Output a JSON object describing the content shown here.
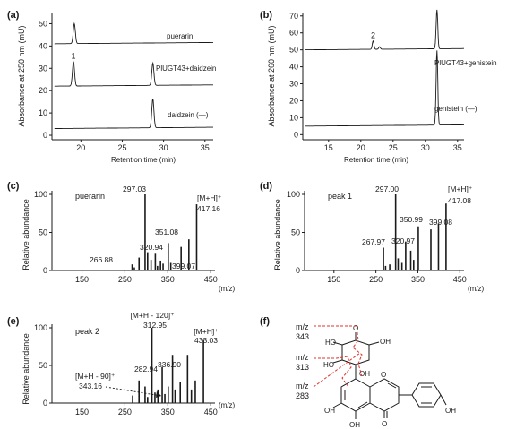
{
  "chart_data": [
    {
      "panel": "(a)",
      "type": "line",
      "ylabel": "Absorbance at 250 nm (mU)",
      "xlabel": "Retention time (min)",
      "yticks": [
        "0",
        "10",
        "20",
        "30",
        "40",
        "50"
      ],
      "xticks": [
        "20",
        "25",
        "30",
        "35"
      ],
      "xlim": [
        16.5,
        36
      ],
      "ylim": [
        -2,
        55
      ],
      "traces": [
        {
          "name": "puerarin",
          "baseline": 41,
          "peaks": [
            {
              "x": 19.2,
              "h": 9,
              "label": ""
            }
          ]
        },
        {
          "name": "PlUGT43+daidzein",
          "baseline": 22,
          "peaks": [
            {
              "x": 19.1,
              "h": 11,
              "label": "1"
            },
            {
              "x": 28.7,
              "h": 10,
              "label": ""
            }
          ]
        },
        {
          "name": "daidzein  (—)",
          "baseline": 3,
          "peaks": [
            {
              "x": 28.7,
              "h": 13,
              "label": ""
            }
          ]
        }
      ]
    },
    {
      "panel": "(b)",
      "type": "line",
      "ylabel": "Absorbance at 260 nm (mU)",
      "xlabel": "Retention time (min)",
      "yticks": [
        "0",
        "10",
        "20",
        "30",
        "40",
        "50",
        "60",
        "70"
      ],
      "xticks": [
        "15",
        "20",
        "25",
        "30",
        "35"
      ],
      "xlim": [
        11,
        36
      ],
      "ylim": [
        -3,
        72
      ],
      "traces": [
        {
          "name": "PlUGT43+genistein",
          "baseline": 50,
          "peaks": [
            {
              "x": 21.9,
              "h": 5,
              "label": "2"
            },
            {
              "x": 22.9,
              "h": 1.5,
              "label": ""
            },
            {
              "x": 31.8,
              "h": 23,
              "label": ""
            }
          ]
        },
        {
          "name": "genistein  (—)",
          "baseline": 5,
          "peaks": [
            {
              "x": 31.8,
              "h": 44,
              "label": ""
            }
          ]
        }
      ]
    },
    {
      "panel": "(c)",
      "type": "bar",
      "name": "puerarin",
      "ylabel": "Relative abundance",
      "yticks": [
        "0",
        "50",
        "100"
      ],
      "xticks": [
        "150",
        "250",
        "350",
        "450"
      ],
      "xunit": "(m/z)",
      "xlim": [
        80,
        460
      ],
      "ylim": [
        0,
        100
      ],
      "peaks": [
        {
          "x": 266.88,
          "y": 8
        },
        {
          "x": 272,
          "y": 4
        },
        {
          "x": 283,
          "y": 17
        },
        {
          "x": 297.03,
          "y": 100
        },
        {
          "x": 303,
          "y": 24
        },
        {
          "x": 311,
          "y": 14
        },
        {
          "x": 320.94,
          "y": 22
        },
        {
          "x": 326,
          "y": 6
        },
        {
          "x": 333,
          "y": 13
        },
        {
          "x": 339,
          "y": 9
        },
        {
          "x": 351.08,
          "y": 36
        },
        {
          "x": 357,
          "y": 10
        },
        {
          "x": 381,
          "y": 31
        },
        {
          "x": 399.07,
          "y": 41
        },
        {
          "x": 417.16,
          "y": 87
        }
      ],
      "annotations": [
        {
          "text": "297.03",
          "x": 297.03
        },
        {
          "text": "351.08",
          "x": 351.08
        },
        {
          "text": "320.94",
          "x": 320.94
        },
        {
          "text": "399.07",
          "x": 399.07
        },
        {
          "text": "266.88",
          "x": 266.88
        },
        {
          "text": "[M+H]⁺",
          "x": 417.16
        },
        {
          "text": "417.16",
          "x": 417.16
        }
      ]
    },
    {
      "panel": "(d)",
      "type": "bar",
      "name": "peak 1",
      "ylabel": "Relative abundance",
      "yticks": [
        "0",
        "50",
        "100"
      ],
      "xticks": [
        "150",
        "250",
        "350",
        "450"
      ],
      "xunit": "(m/z)",
      "xlim": [
        80,
        460
      ],
      "ylim": [
        0,
        100
      ],
      "peaks": [
        {
          "x": 267.97,
          "y": 30
        },
        {
          "x": 273,
          "y": 6
        },
        {
          "x": 283,
          "y": 8
        },
        {
          "x": 297.0,
          "y": 100
        },
        {
          "x": 303,
          "y": 16
        },
        {
          "x": 312,
          "y": 10
        },
        {
          "x": 320.97,
          "y": 38
        },
        {
          "x": 333,
          "y": 26
        },
        {
          "x": 340,
          "y": 14
        },
        {
          "x": 350.99,
          "y": 58
        },
        {
          "x": 381,
          "y": 54
        },
        {
          "x": 399.08,
          "y": 62
        },
        {
          "x": 417.08,
          "y": 88
        }
      ],
      "annotations": [
        {
          "text": "297.00",
          "x": 297.0
        },
        {
          "text": "350.99",
          "x": 350.99
        },
        {
          "text": "399.08",
          "x": 399.08
        },
        {
          "text": "320.97",
          "x": 320.97
        },
        {
          "text": "267.97",
          "x": 267.97
        },
        {
          "text": "[M+H]⁺",
          "x": 417.08
        },
        {
          "text": "417.08",
          "x": 417.08
        }
      ]
    },
    {
      "panel": "(e)",
      "type": "bar",
      "name": "peak 2",
      "ylabel": "Relative abundance",
      "yticks": [
        "0",
        "50",
        "100"
      ],
      "xticks": [
        "150",
        "250",
        "350",
        "450"
      ],
      "xunit": "(m/z)",
      "xlim": [
        80,
        460
      ],
      "ylim": [
        0,
        100
      ],
      "peaks": [
        {
          "x": 268,
          "y": 10
        },
        {
          "x": 282.94,
          "y": 30
        },
        {
          "x": 297,
          "y": 22
        },
        {
          "x": 303,
          "y": 8
        },
        {
          "x": 312.95,
          "y": 100
        },
        {
          "x": 320,
          "y": 14
        },
        {
          "x": 327,
          "y": 18
        },
        {
          "x": 336.9,
          "y": 48
        },
        {
          "x": 343.16,
          "y": 12
        },
        {
          "x": 351,
          "y": 22
        },
        {
          "x": 361,
          "y": 64
        },
        {
          "x": 367,
          "y": 18
        },
        {
          "x": 379,
          "y": 28
        },
        {
          "x": 396,
          "y": 64
        },
        {
          "x": 405,
          "y": 18
        },
        {
          "x": 414,
          "y": 30
        },
        {
          "x": 433.03,
          "y": 84
        }
      ],
      "annotations": [
        {
          "text": "[M+H - 120]⁺",
          "x": 312.95
        },
        {
          "text": "312.95",
          "x": 312.95
        },
        {
          "text": "[M+H]⁺",
          "x": 433.03
        },
        {
          "text": "433.03",
          "x": 433.03
        },
        {
          "text": "336.90",
          "x": 336.9
        },
        {
          "text": "282.94",
          "x": 282.94
        },
        {
          "text": "[M+H - 90]⁺",
          "x": 343.16
        },
        {
          "text": "343.16",
          "x": 343.16
        }
      ]
    }
  ],
  "panel_f": {
    "label": "(f)",
    "fragments": [
      {
        "line1": "m/z",
        "line2": "343"
      },
      {
        "line1": "m/z",
        "line2": "313"
      },
      {
        "line1": "m/z",
        "line2": "283"
      }
    ],
    "atoms": [
      "HO",
      "O",
      "OH",
      "HO",
      "OH",
      "OH",
      "O",
      "OH",
      "O",
      "OH"
    ]
  },
  "colors": {
    "ink": "#1a1a1a",
    "fragment_line": "#e0312b"
  }
}
